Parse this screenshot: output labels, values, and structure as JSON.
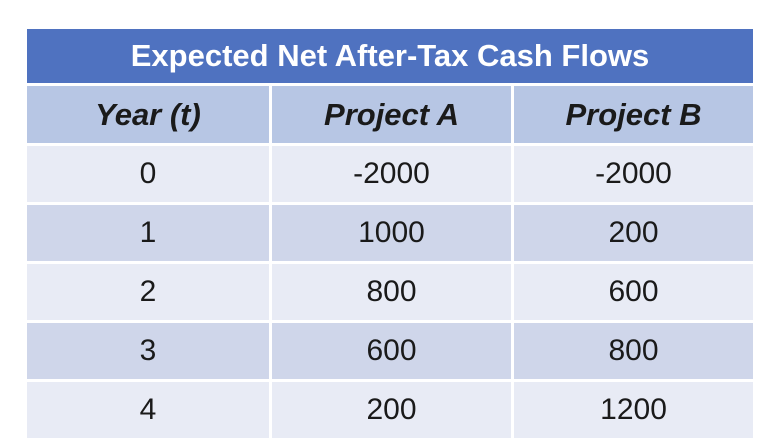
{
  "table": {
    "title": "Expected Net After-Tax Cash Flows",
    "headers": [
      "Year (t)",
      "Project A",
      "Project B"
    ],
    "rows": [
      [
        "0",
        "-2000",
        "-2000"
      ],
      [
        "1",
        "1000",
        "200"
      ],
      [
        "2",
        "800",
        "600"
      ],
      [
        "3",
        "600",
        "800"
      ],
      [
        "4",
        "200",
        "1200"
      ]
    ]
  },
  "colors": {
    "title_bg": "#4f72c0",
    "header_bg": "#b7c6e4",
    "row_light": "#e8ebf5",
    "row_dark": "#cfd6ea"
  }
}
